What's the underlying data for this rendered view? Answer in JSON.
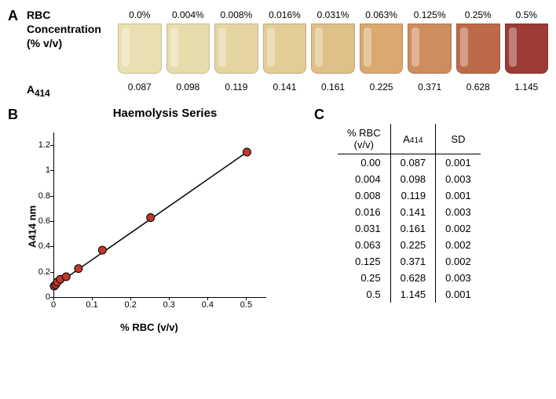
{
  "panelA": {
    "label": "A",
    "rbc_label_line1": "RBC",
    "rbc_label_line2": "Concentration",
    "rbc_label_line3": "(% v/v)",
    "a414_label_html": "A",
    "a414_sub": "414",
    "concentrations": [
      "0.0%",
      "0.004%",
      "0.008%",
      "0.016%",
      "0.031%",
      "0.063%",
      "0.125%",
      "0.25%",
      "0.5%"
    ],
    "a414_values": [
      "0.087",
      "0.098",
      "0.119",
      "0.141",
      "0.161",
      "0.225",
      "0.371",
      "0.628",
      "1.145"
    ],
    "cuvette_colors": [
      "#e8e0b0",
      "#e7dcac",
      "#e4d5a2",
      "#e2cd97",
      "#dfc088",
      "#d9a970",
      "#cf8c5c",
      "#bd6a4a",
      "#9c3c34"
    ]
  },
  "panelB": {
    "label": "B",
    "title": "Haemolysis Series",
    "ylabel": "A414 nm",
    "xlabel": "% RBC (v/v)",
    "xlim": [
      0,
      0.55
    ],
    "ylim": [
      0,
      1.3
    ],
    "xticks": [
      0,
      0.1,
      0.2,
      0.3,
      0.4,
      0.5
    ],
    "xtick_labels": [
      "0",
      "0.1",
      "0.2",
      "0.3",
      "0.4",
      "0.5"
    ],
    "yticks": [
      0,
      0.2,
      0.4,
      0.6,
      0.8,
      1.0,
      1.2
    ],
    "ytick_labels": [
      "0",
      "0.2",
      "0.4",
      "0.6",
      "0.8",
      "1",
      "1.2"
    ],
    "x": [
      0.0,
      0.004,
      0.008,
      0.016,
      0.031,
      0.063,
      0.125,
      0.25,
      0.5
    ],
    "y": [
      0.087,
      0.098,
      0.119,
      0.141,
      0.161,
      0.225,
      0.371,
      0.628,
      1.145
    ],
    "marker_color": "#c0392b",
    "marker_stroke": "#000000",
    "line_color": "#000000",
    "background_color": "#ffffff",
    "marker_radius": 5,
    "line_width": 1.5
  },
  "panelC": {
    "label": "C",
    "columns": [
      "% RBC\n(v/v)",
      "A414",
      "SD"
    ],
    "col0_line1": "% RBC",
    "col0_line2": "(v/v)",
    "col1_main": "A",
    "col1_sub": "414",
    "col2": "SD",
    "rows": [
      [
        "0.00",
        "0.087",
        "0.001"
      ],
      [
        "0.004",
        "0.098",
        "0.003"
      ],
      [
        "0.008",
        "0.119",
        "0.001"
      ],
      [
        "0.016",
        "0.141",
        "0.003"
      ],
      [
        "0.031",
        "0.161",
        "0.002"
      ],
      [
        "0.063",
        "0.225",
        "0.002"
      ],
      [
        "0.125",
        "0.371",
        "0.002"
      ],
      [
        "0.25",
        "0.628",
        "0.003"
      ],
      [
        "0.5",
        "1.145",
        "0.001"
      ]
    ]
  }
}
